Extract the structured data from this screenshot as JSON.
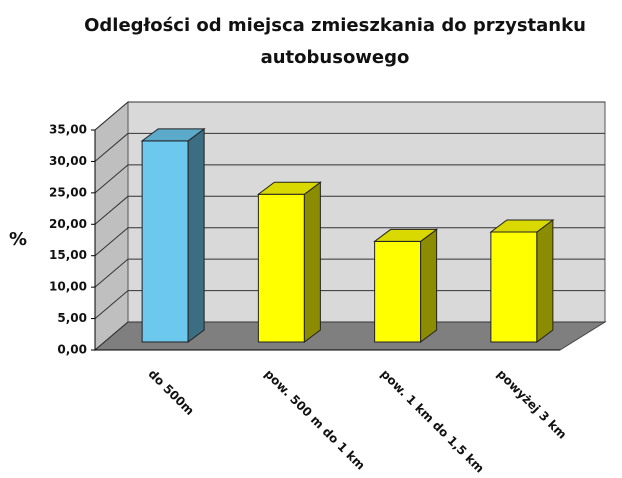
{
  "chart_data": {
    "type": "bar3d",
    "title": [
      "Odległości od miejsca zmieszkania do przystanku",
      "autobusowego"
    ],
    "y_label": "%",
    "categories": [
      "do 500m",
      "pow. 500 m do 1 km",
      "pow. 1 km do 1,5 km",
      "powyżej 3 km"
    ],
    "values": [
      32,
      23.5,
      16,
      17.5
    ],
    "colors": [
      "#6cc8ec",
      "#ffff00",
      "#ffff00",
      "#ffff00"
    ],
    "ylim": [
      0,
      35
    ],
    "yticks": [
      {
        "value": 0,
        "label": "0,00"
      },
      {
        "value": 5,
        "label": "5,00"
      },
      {
        "value": 10,
        "label": "10,00"
      },
      {
        "value": 15,
        "label": "15,00"
      },
      {
        "value": 20,
        "label": "20,00"
      },
      {
        "value": 25,
        "label": "25,00"
      },
      {
        "value": 30,
        "label": "30,00"
      },
      {
        "value": 35,
        "label": "35,00"
      }
    ],
    "grid": true
  }
}
